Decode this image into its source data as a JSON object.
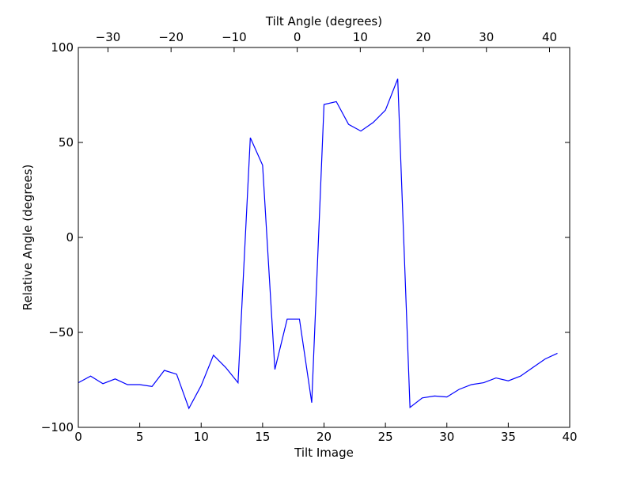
{
  "chart_data": {
    "type": "line",
    "xlabel": "Tilt Image",
    "ylabel": "Relative Angle (degrees)",
    "top_xlabel": "Tilt Angle (degrees)",
    "xlim": [
      0,
      40
    ],
    "ylim": [
      -100,
      100
    ],
    "top_xlim": [
      -34.7,
      43.2
    ],
    "x_ticks": [
      0,
      5,
      10,
      15,
      20,
      25,
      30,
      35,
      40
    ],
    "y_ticks": [
      -100,
      -50,
      0,
      50,
      100
    ],
    "top_x_ticks": [
      -30,
      -20,
      -10,
      0,
      10,
      20,
      30,
      40
    ],
    "x_tick_labels": [
      "0",
      "5",
      "10",
      "15",
      "20",
      "25",
      "30",
      "35",
      "40"
    ],
    "y_tick_labels": [
      "−100",
      "−50",
      "0",
      "50",
      "100"
    ],
    "top_x_tick_labels": [
      "−30",
      "−20",
      "−10",
      "0",
      "10",
      "20",
      "30",
      "40"
    ],
    "grid": false,
    "legend": "none",
    "series": [
      {
        "color": "#0000ff",
        "x": [
          0,
          1,
          2,
          3,
          4,
          5,
          6,
          7,
          8,
          9,
          10,
          11,
          12,
          13,
          14,
          15,
          16,
          17,
          18,
          19,
          20,
          21,
          22,
          23,
          24,
          25,
          26,
          27,
          28,
          29,
          30,
          31,
          32,
          33,
          34,
          35,
          36,
          37,
          38,
          39
        ],
        "y": [
          -76.5,
          -73,
          -77,
          -74.5,
          -77.5,
          -77.5,
          -78.5,
          -70,
          -72,
          -90,
          -78,
          -62,
          -68.5,
          -76.5,
          52.5,
          38,
          -69.5,
          -43,
          -43,
          -87,
          70,
          71.5,
          59.5,
          56,
          60.5,
          67,
          83.5,
          -89.5,
          -84.5,
          -83.5,
          -84,
          -80,
          -77.5,
          -76.5,
          -74,
          -75.5,
          -73,
          -68.5,
          -64,
          -61
        ]
      }
    ]
  }
}
